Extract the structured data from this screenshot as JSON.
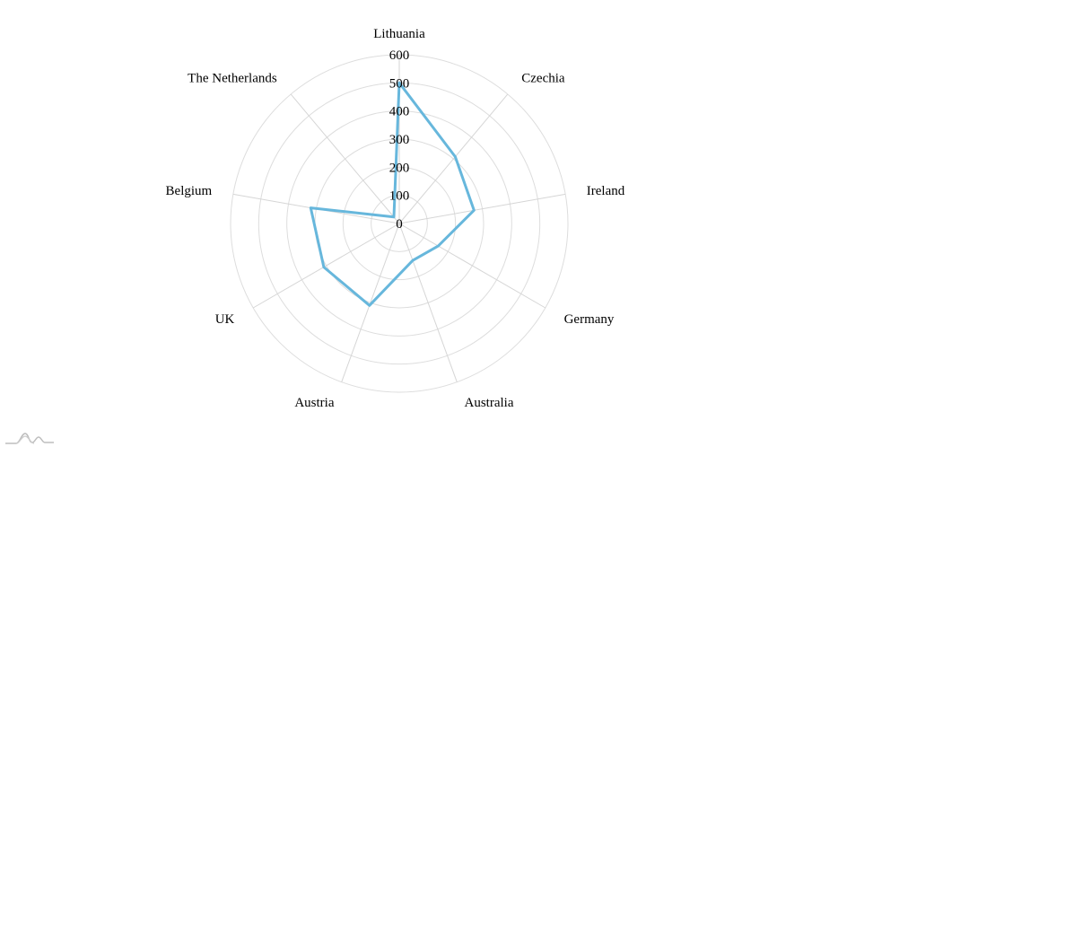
{
  "chart_data": {
    "type": "radar",
    "categories": [
      "Lithuania",
      "Czechia",
      "Ireland",
      "Germany",
      "Australia",
      "Austria",
      "UK",
      "Belgium",
      "The Netherlands"
    ],
    "series": [
      {
        "values": [
          500,
          310,
          270,
          160,
          140,
          310,
          310,
          320,
          30
        ],
        "color": "#67b7dc"
      }
    ],
    "rlim": [
      0,
      600
    ],
    "ticks": [
      "0",
      "100",
      "200",
      "300",
      "400",
      "500",
      "600"
    ],
    "grid": true
  },
  "branding": {
    "icon": "amcharts-logo-icon"
  }
}
